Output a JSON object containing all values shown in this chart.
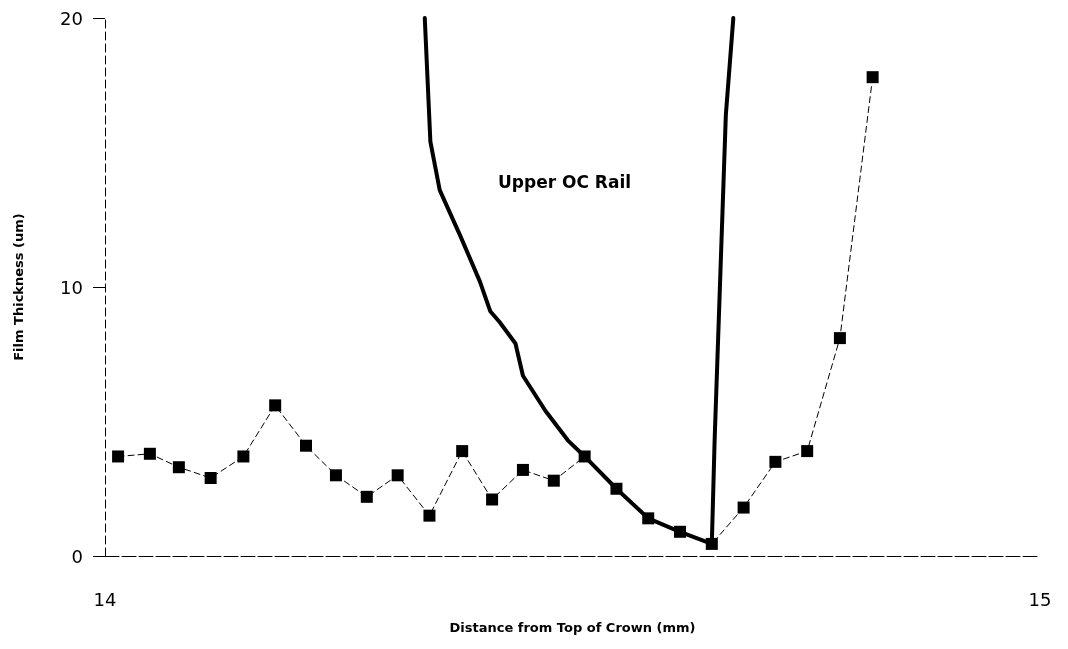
{
  "chart_data": {
    "type": "line",
    "xlabel": "Distance from Top of Crown (mm)",
    "ylabel": "Film Thickness (um)",
    "xlim": [
      14,
      15
    ],
    "xticks": [
      14,
      15
    ],
    "ylim": [
      0,
      20
    ],
    "yticks": [
      0,
      10,
      20
    ],
    "grid": false,
    "legend": false,
    "annotations": [
      "Upper OC Rail"
    ],
    "series": [
      {
        "color": "#000000",
        "marker": "square",
        "line_style": "dashed",
        "x": [
          14.014,
          14.048,
          14.079,
          14.113,
          14.148,
          14.182,
          14.215,
          14.247,
          14.28,
          14.313,
          14.347,
          14.382,
          14.414,
          14.447,
          14.48,
          14.513,
          14.547,
          14.581,
          14.615,
          14.649,
          14.683,
          14.717,
          14.751,
          14.786,
          14.821
        ],
        "values": [
          3.7,
          3.8,
          3.3,
          2.9,
          3.7,
          5.6,
          4.1,
          3.0,
          2.2,
          3.0,
          1.5,
          3.9,
          2.1,
          3.2,
          2.8,
          3.7,
          2.5,
          1.4,
          0.9,
          0.45,
          1.8,
          3.5,
          3.9,
          8.1,
          17.8
        ]
      },
      {
        "color": "#000000",
        "marker": "none",
        "line_style": "solid",
        "x": [
          14.342,
          14.348,
          14.358,
          14.38,
          14.401,
          14.412,
          14.422,
          14.439,
          14.447,
          14.471,
          14.495,
          14.513,
          14.547,
          14.581,
          14.615,
          14.649,
          14.652,
          14.664,
          14.672
        ],
        "values": [
          20,
          15.4,
          13.6,
          11.9,
          10.2,
          9.1,
          8.7,
          7.9,
          6.7,
          5.4,
          4.3,
          3.7,
          2.5,
          1.4,
          0.9,
          0.45,
          4.3,
          16.4,
          20
        ]
      }
    ]
  }
}
